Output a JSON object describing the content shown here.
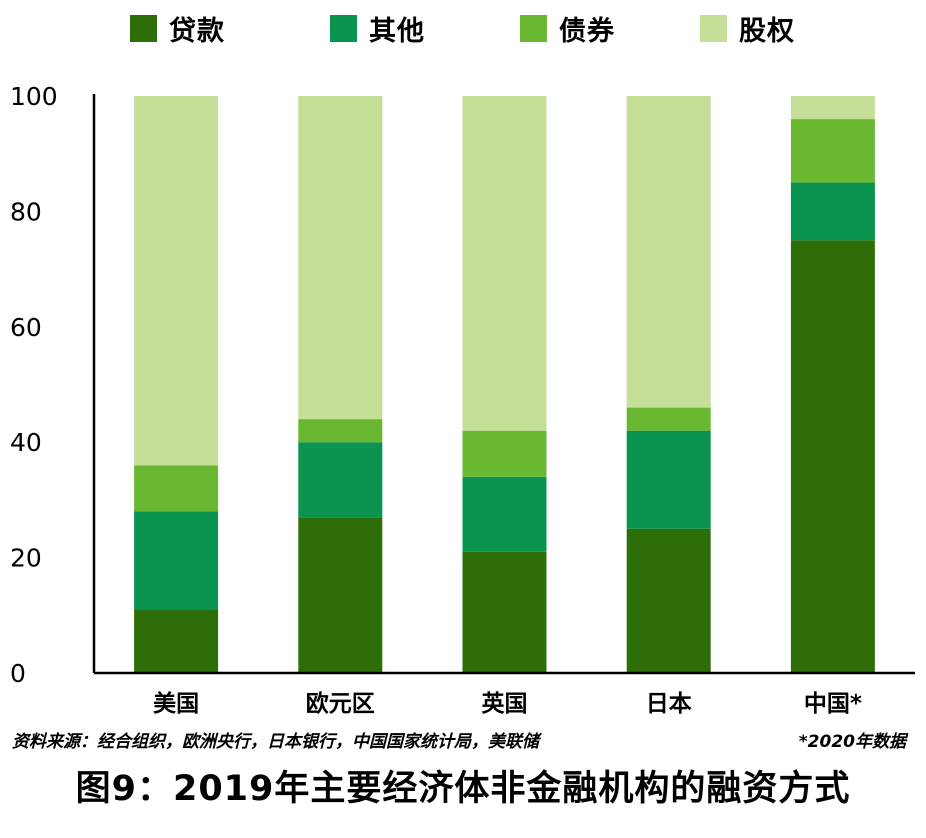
{
  "chart_data": {
    "type": "bar",
    "stacked": true,
    "categories": [
      "美国",
      "欧元区",
      "英国",
      "日本",
      "中国*"
    ],
    "series": [
      {
        "name": "贷款",
        "color": "#2e6e08",
        "values": [
          11,
          27,
          21,
          25,
          75
        ]
      },
      {
        "name": "其他",
        "color": "#0a9450",
        "values": [
          17,
          13,
          13,
          17,
          10
        ]
      },
      {
        "name": "债券",
        "color": "#6ab832",
        "values": [
          8,
          4,
          8,
          4,
          11
        ]
      },
      {
        "name": "股权",
        "color": "#c5df98",
        "values": [
          64,
          56,
          58,
          54,
          4
        ]
      }
    ],
    "yticks": [
      "0",
      "20",
      "40",
      "60",
      "80",
      "100"
    ],
    "ylim": [
      0,
      100
    ],
    "legend_position": "top",
    "grid": false
  },
  "source_text": "资料来源：经合组织，欧洲央行，日本银行，中国国家统计局，美联储",
  "note_text": "*2020年数据",
  "figure_title": "图9：2019年主要经济体非金融机构的融资方式"
}
